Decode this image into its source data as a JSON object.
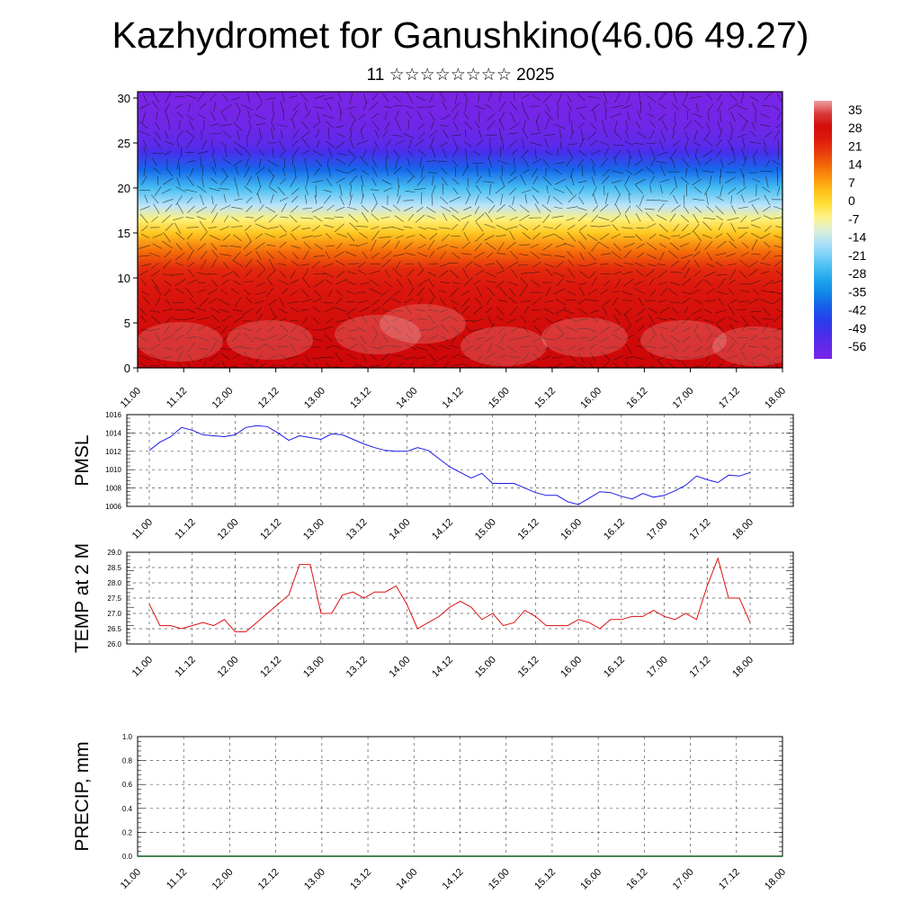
{
  "title": "Kazhydromet for Ganushkino(46.06 49.27)",
  "subtitle": "11 ☆☆☆☆☆☆☆☆ 2025",
  "colors": {
    "pmsl_line": "#1a1ae6",
    "temp_line": "#dd1111",
    "precip_line": "#0a5a1a",
    "frame": "#000000",
    "grid": "#555555"
  },
  "chart_data": [
    {
      "type": "heatmap",
      "name": "cross-section",
      "xticks": [
        "11.00",
        "11.12",
        "12.00",
        "12.12",
        "13.00",
        "13.12",
        "14.00",
        "14.12",
        "15.00",
        "15.12",
        "16.00",
        "16.12",
        "17.00",
        "17.12",
        "18.00"
      ],
      "ylim": [
        0,
        30.7
      ],
      "yticks": [
        0,
        5,
        10,
        15,
        20,
        25,
        30
      ],
      "colorbar_labels": [
        "35",
        "28",
        "21",
        "14",
        "7",
        "0",
        "-7",
        "-14",
        "-21",
        "-28",
        "-35",
        "-42",
        "-49",
        "-56"
      ],
      "profile": [
        {
          "y": 0,
          "t": 28
        },
        {
          "y": 3,
          "t": 27
        },
        {
          "y": 6,
          "t": 25
        },
        {
          "y": 9,
          "t": 22
        },
        {
          "y": 11,
          "t": 19
        },
        {
          "y": 13,
          "t": 11
        },
        {
          "y": 15,
          "t": 1
        },
        {
          "y": 16.5,
          "t": -6
        },
        {
          "y": 18,
          "t": -15
        },
        {
          "y": 20,
          "t": -25
        },
        {
          "y": 22,
          "t": -38
        },
        {
          "y": 24,
          "t": -49
        },
        {
          "y": 25,
          "t": -53
        },
        {
          "y": 27,
          "t": -56
        },
        {
          "y": 30.7,
          "t": -58
        }
      ]
    },
    {
      "type": "line",
      "ylabel": "PMSL",
      "xticks": [
        "11.00",
        "11.12",
        "12.00",
        "12.12",
        "13.00",
        "13.12",
        "14.00",
        "14.12",
        "15.00",
        "15.12",
        "16.00",
        "16.12",
        "17.00",
        "17.12",
        "18.00"
      ],
      "ylim": [
        1006,
        1016
      ],
      "yticks": [
        "1006",
        "1008",
        "1010",
        "1012",
        "1014",
        "1016"
      ],
      "series": [
        {
          "values": [
            1012.1,
            1013.0,
            1013.6,
            1014.6,
            1014.3,
            1013.8,
            1013.7,
            1013.6,
            1013.8,
            1014.6,
            1014.8,
            1014.7,
            1014.0,
            1013.2,
            1013.7,
            1013.5,
            1013.3,
            1013.9,
            1013.8,
            1013.3,
            1012.8,
            1012.4,
            1012.1,
            1012.0,
            1012.0,
            1012.4,
            1012.1,
            1011.2,
            1010.3,
            1009.7,
            1009.1,
            1009.6,
            1008.5,
            1008.5,
            1008.5,
            1008.0,
            1007.5,
            1007.2,
            1007.2,
            1006.5,
            1006.2,
            1006.9,
            1007.6,
            1007.5,
            1007.1,
            1006.8,
            1007.4,
            1007.0,
            1007.2,
            1007.7,
            1008.3,
            1009.3,
            1008.9,
            1008.6,
            1009.4,
            1009.3,
            1009.7
          ]
        }
      ]
    },
    {
      "type": "line",
      "ylabel": "TEMP at 2 M",
      "xticks": [
        "11.00",
        "11.12",
        "12.00",
        "12.12",
        "13.00",
        "13.12",
        "14.00",
        "14.12",
        "15.00",
        "15.12",
        "16.00",
        "16.12",
        "17.00",
        "17.12",
        "18.00"
      ],
      "ylim": [
        26.0,
        29.0
      ],
      "yticks": [
        "26.0",
        "26.5",
        "27.0",
        "27.5",
        "28.0",
        "28.5",
        "29.0"
      ],
      "series": [
        {
          "values": [
            27.3,
            26.6,
            26.6,
            26.5,
            26.6,
            26.7,
            26.6,
            26.8,
            26.4,
            26.4,
            26.7,
            27.0,
            27.3,
            27.6,
            28.6,
            28.6,
            27.0,
            27.0,
            27.6,
            27.7,
            27.5,
            27.7,
            27.7,
            27.9,
            27.3,
            26.5,
            26.7,
            26.9,
            27.2,
            27.4,
            27.2,
            26.8,
            27.0,
            26.6,
            26.7,
            27.1,
            26.9,
            26.6,
            26.6,
            26.6,
            26.8,
            26.7,
            26.5,
            26.8,
            26.8,
            26.9,
            26.9,
            27.1,
            26.9,
            26.8,
            27.0,
            26.8,
            27.9,
            28.8,
            27.5,
            27.5,
            26.7
          ]
        }
      ]
    },
    {
      "type": "line",
      "ylabel": "PRECIP, mm",
      "xticks": [
        "11.00",
        "11.12",
        "12.00",
        "12.12",
        "13.00",
        "13.12",
        "14.00",
        "14.12",
        "15.00",
        "15.12",
        "16.00",
        "16.12",
        "17.00",
        "17.12",
        "18.00"
      ],
      "ylim": [
        0.0,
        1.0
      ],
      "yticks": [
        "0.0",
        "0.2",
        "0.4",
        "0.6",
        "0.8",
        "1.0"
      ],
      "series": [
        {
          "values": [
            0,
            0,
            0,
            0,
            0,
            0,
            0,
            0,
            0,
            0,
            0,
            0,
            0,
            0,
            0,
            0,
            0,
            0,
            0,
            0,
            0,
            0,
            0,
            0,
            0,
            0,
            0,
            0,
            0,
            0,
            0,
            0,
            0,
            0,
            0,
            0,
            0,
            0,
            0,
            0,
            0,
            0,
            0,
            0,
            0,
            0,
            0,
            0,
            0,
            0,
            0,
            0,
            0,
            0,
            0,
            0,
            0
          ]
        }
      ]
    }
  ]
}
